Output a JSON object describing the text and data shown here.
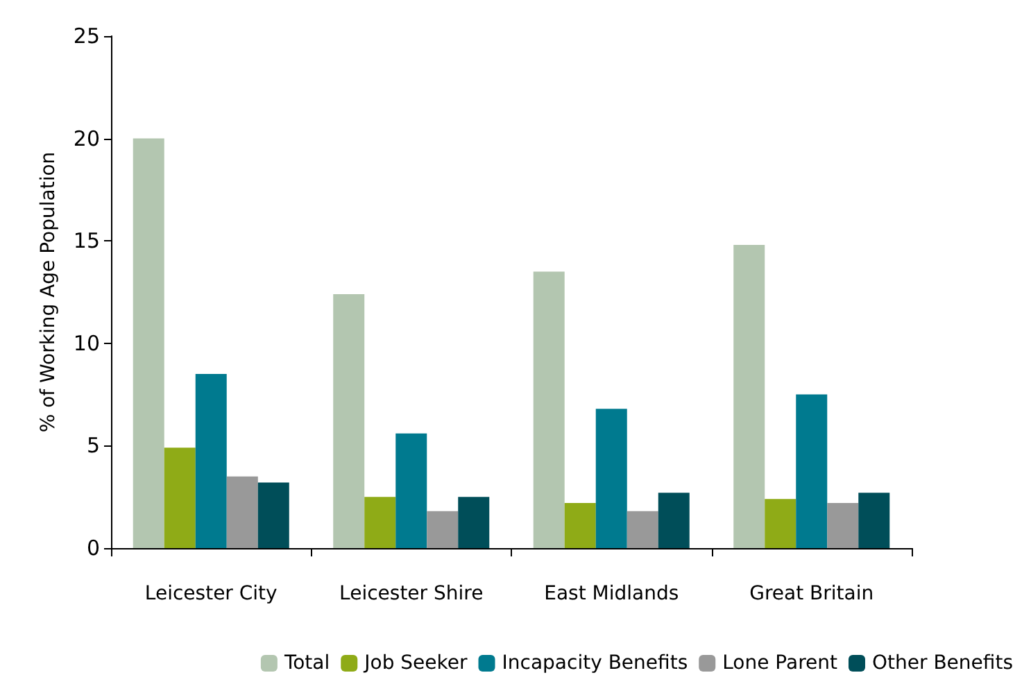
{
  "chart_data": {
    "type": "bar",
    "ylabel": "% of Working Age Population",
    "categories": [
      "Leicester City",
      "Leicester Shire",
      "East Midlands",
      "Great Britain"
    ],
    "series": [
      {
        "name": "Total",
        "color": "#b3c6b0",
        "values": [
          20.0,
          12.4,
          13.5,
          14.8
        ]
      },
      {
        "name": "Job Seeker",
        "color": "#8fab17",
        "values": [
          4.9,
          2.5,
          2.2,
          2.4
        ]
      },
      {
        "name": "Incapacity Benefits",
        "color": "#007a8f",
        "values": [
          8.5,
          5.6,
          6.8,
          7.5
        ]
      },
      {
        "name": "Lone Parent",
        "color": "#999999",
        "values": [
          3.5,
          1.8,
          1.8,
          2.2
        ]
      },
      {
        "name": "Other Benefits",
        "color": "#004e59",
        "values": [
          3.2,
          2.5,
          2.7,
          2.7
        ]
      }
    ],
    "ylim": [
      0,
      25
    ],
    "yticks": [
      0,
      5,
      10,
      15,
      20,
      25
    ],
    "grid": false,
    "legend": "bottom right"
  }
}
